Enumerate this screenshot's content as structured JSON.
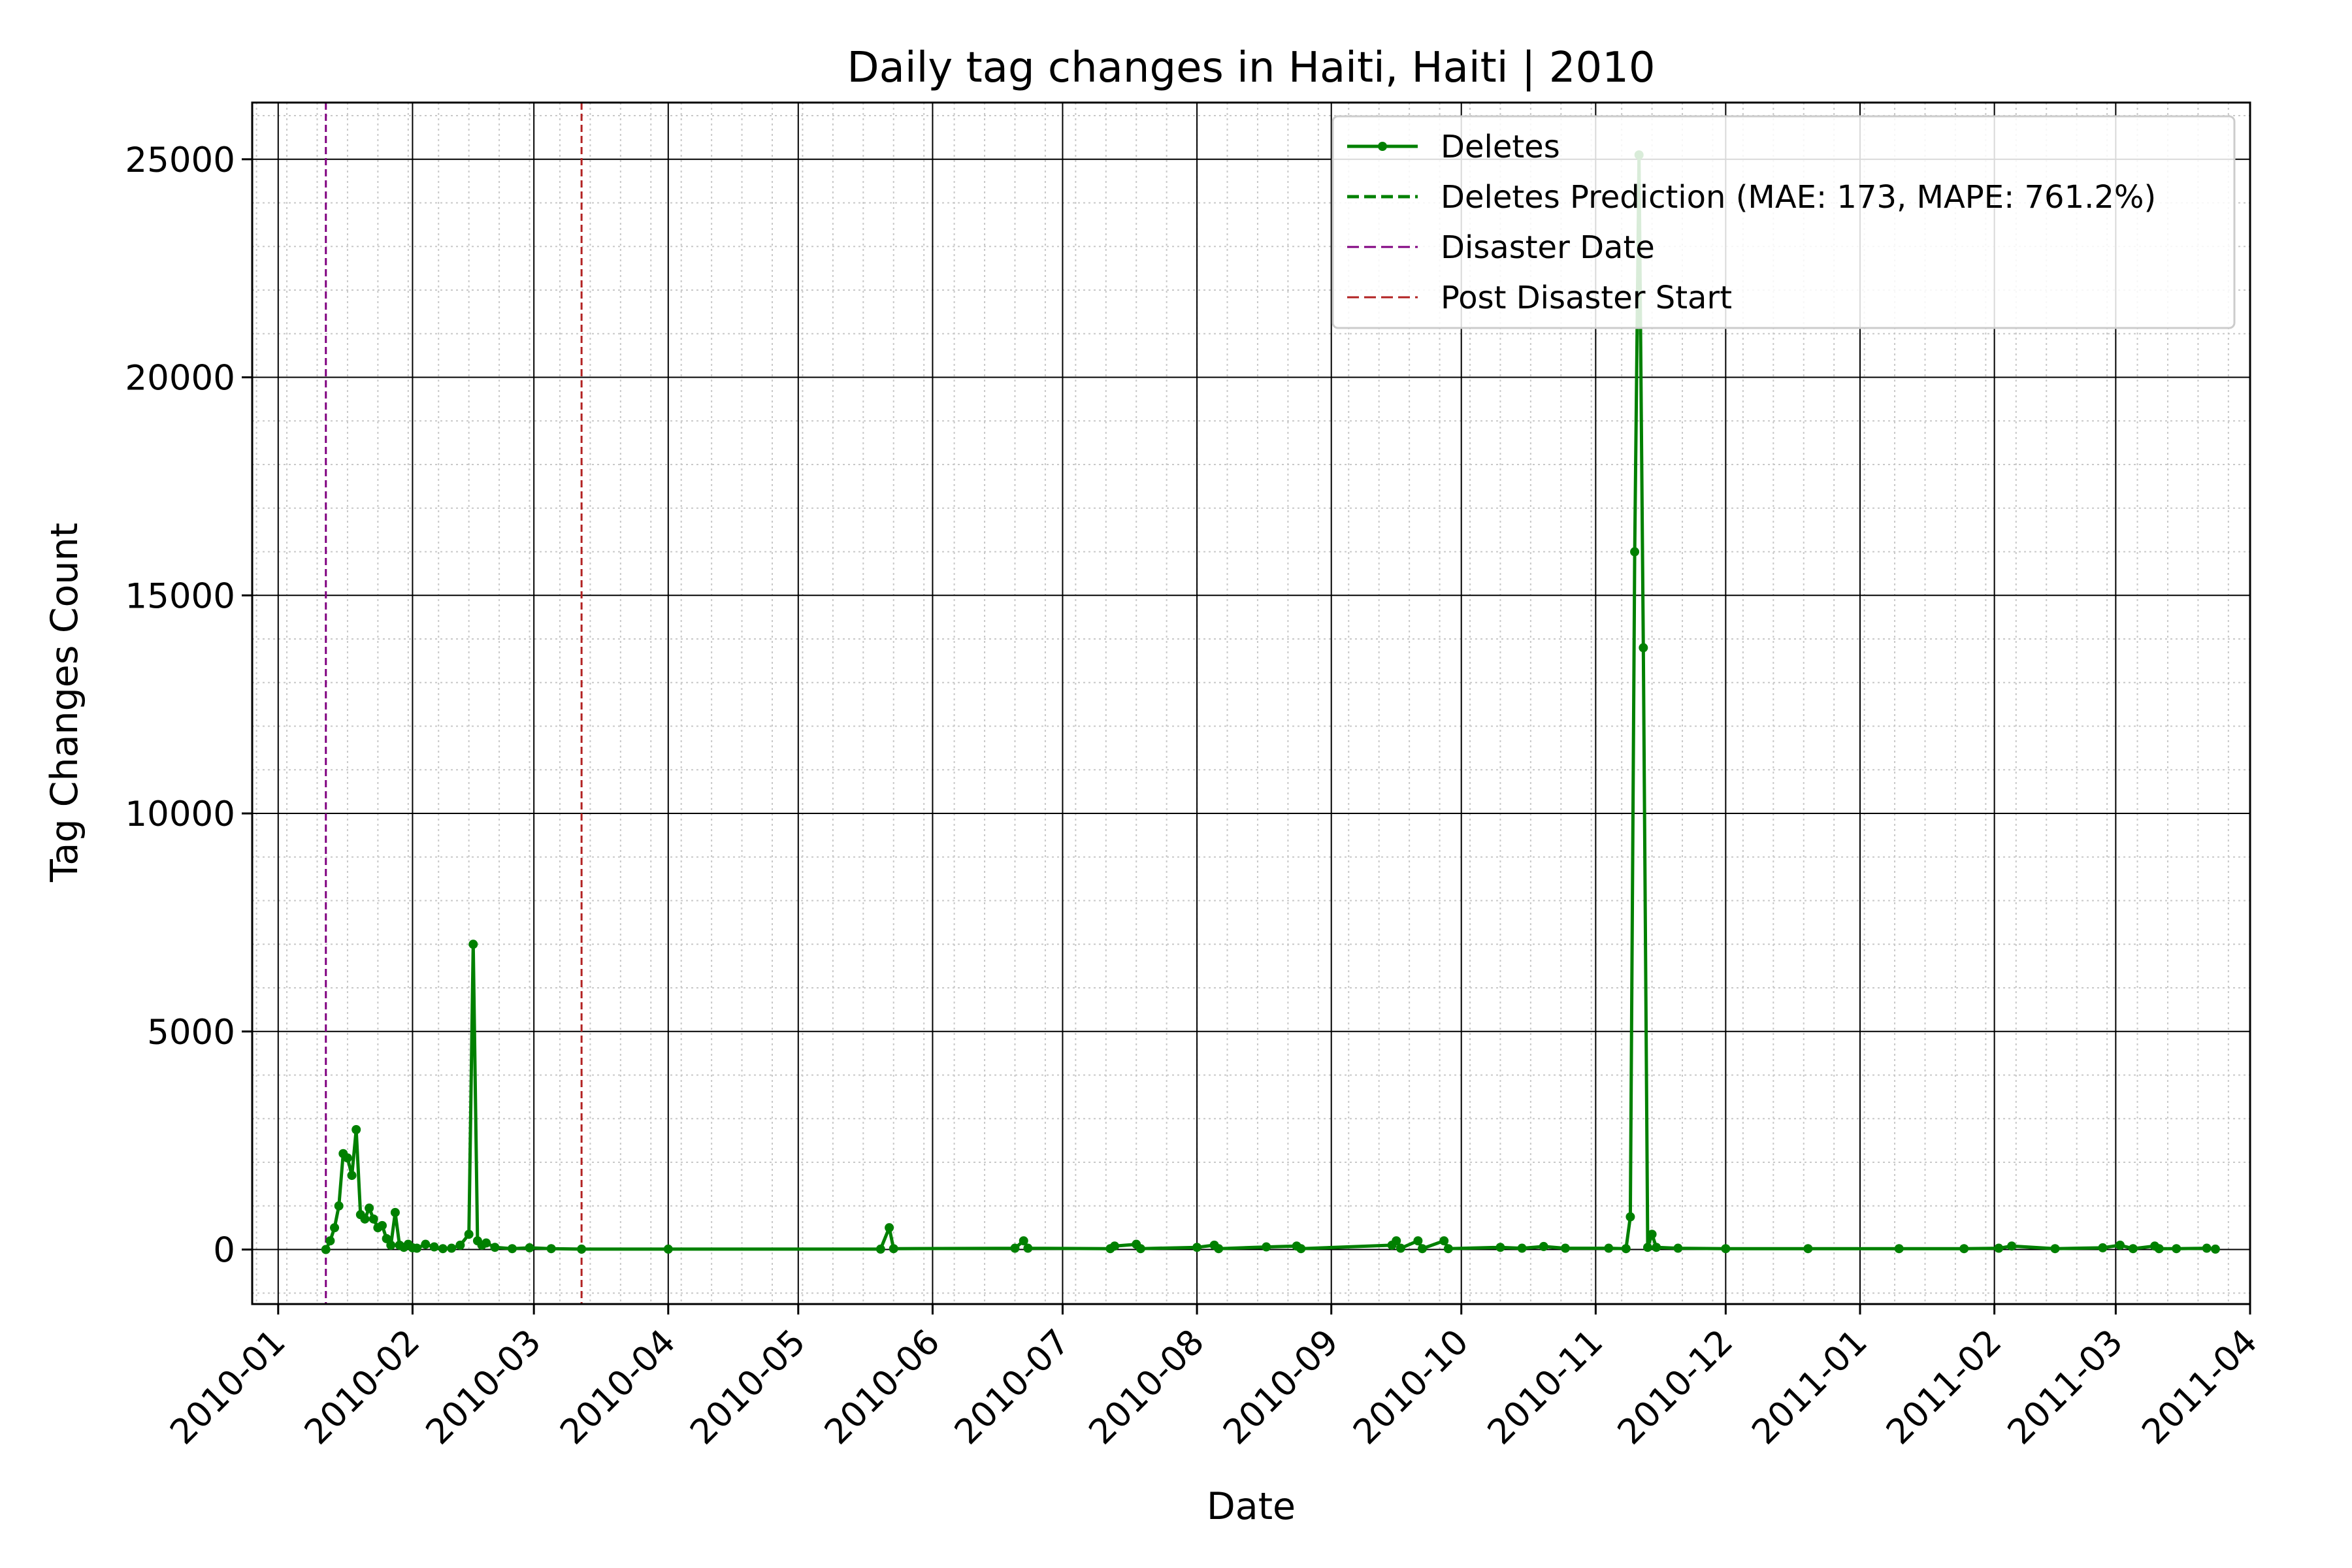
{
  "chart_data": {
    "type": "line",
    "title": "Daily tag changes in Haiti, Haiti | 2010",
    "xlabel": "Date",
    "ylabel": "Tag Changes Count",
    "x_ticks": [
      "2010-01",
      "2010-02",
      "2010-03",
      "2010-04",
      "2010-05",
      "2010-06",
      "2010-07",
      "2010-08",
      "2010-09",
      "2010-10",
      "2010-11",
      "2010-12",
      "2011-01",
      "2011-02",
      "2011-03",
      "2011-04"
    ],
    "y_ticks": [
      0,
      5000,
      10000,
      15000,
      20000,
      25000
    ],
    "xlim": [
      "2009-12-26",
      "2011-04-01"
    ],
    "ylim": [
      -1250,
      26300
    ],
    "grid": true,
    "legend_position": "top-right",
    "legend": [
      {
        "label": "Deletes",
        "style": "line-marker",
        "color": "#008000"
      },
      {
        "label": "Deletes Prediction (MAE: 173, MAPE: 761.2%)",
        "style": "dashed",
        "color": "#008000"
      },
      {
        "label": "Disaster Date",
        "style": "dashed",
        "color": "#800080"
      },
      {
        "label": "Post Disaster Start",
        "style": "dashed",
        "color": "#b22222"
      }
    ],
    "vlines": [
      {
        "name": "Disaster Date",
        "date": "2010-01-12",
        "color": "#800080"
      },
      {
        "name": "Post Disaster Start",
        "date": "2010-03-12",
        "color": "#b22222"
      }
    ],
    "series": [
      {
        "name": "Deletes",
        "color": "#008000",
        "points": [
          [
            "2010-01-12",
            0
          ],
          [
            "2010-01-13",
            200
          ],
          [
            "2010-01-14",
            500
          ],
          [
            "2010-01-15",
            1000
          ],
          [
            "2010-01-16",
            2200
          ],
          [
            "2010-01-17",
            2100
          ],
          [
            "2010-01-18",
            1700
          ],
          [
            "2010-01-19",
            2750
          ],
          [
            "2010-01-20",
            800
          ],
          [
            "2010-01-21",
            700
          ],
          [
            "2010-01-22",
            950
          ],
          [
            "2010-01-23",
            700
          ],
          [
            "2010-01-24",
            500
          ],
          [
            "2010-01-25",
            550
          ],
          [
            "2010-01-26",
            250
          ],
          [
            "2010-01-27",
            100
          ],
          [
            "2010-01-28",
            850
          ],
          [
            "2010-01-29",
            100
          ],
          [
            "2010-01-30",
            50
          ],
          [
            "2010-01-31",
            120
          ],
          [
            "2010-02-01",
            40
          ],
          [
            "2010-02-02",
            30
          ],
          [
            "2010-02-04",
            120
          ],
          [
            "2010-02-06",
            60
          ],
          [
            "2010-02-08",
            20
          ],
          [
            "2010-02-10",
            30
          ],
          [
            "2010-02-12",
            100
          ],
          [
            "2010-02-14",
            350
          ],
          [
            "2010-02-15",
            7000
          ],
          [
            "2010-02-16",
            200
          ],
          [
            "2010-02-17",
            100
          ],
          [
            "2010-02-18",
            150
          ],
          [
            "2010-02-20",
            50
          ],
          [
            "2010-02-24",
            20
          ],
          [
            "2010-02-28",
            40
          ],
          [
            "2010-03-05",
            20
          ],
          [
            "2010-03-12",
            10
          ],
          [
            "2010-04-01",
            10
          ],
          [
            "2010-05-20",
            10
          ],
          [
            "2010-05-22",
            500
          ],
          [
            "2010-05-23",
            20
          ],
          [
            "2010-06-20",
            30
          ],
          [
            "2010-06-22",
            200
          ],
          [
            "2010-06-23",
            30
          ],
          [
            "2010-07-12",
            20
          ],
          [
            "2010-07-13",
            80
          ],
          [
            "2010-07-18",
            120
          ],
          [
            "2010-07-19",
            20
          ],
          [
            "2010-08-01",
            50
          ],
          [
            "2010-08-05",
            100
          ],
          [
            "2010-08-06",
            20
          ],
          [
            "2010-08-17",
            60
          ],
          [
            "2010-08-24",
            80
          ],
          [
            "2010-08-25",
            20
          ],
          [
            "2010-09-15",
            100
          ],
          [
            "2010-09-16",
            200
          ],
          [
            "2010-09-17",
            30
          ],
          [
            "2010-09-21",
            200
          ],
          [
            "2010-09-22",
            20
          ],
          [
            "2010-09-27",
            200
          ],
          [
            "2010-09-28",
            20
          ],
          [
            "2010-10-10",
            50
          ],
          [
            "2010-10-15",
            30
          ],
          [
            "2010-10-20",
            70
          ],
          [
            "2010-10-25",
            30
          ],
          [
            "2010-11-04",
            30
          ],
          [
            "2010-11-08",
            20
          ],
          [
            "2010-11-09",
            750
          ],
          [
            "2010-11-10",
            16000
          ],
          [
            "2010-11-11",
            25100
          ],
          [
            "2010-11-12",
            13800
          ],
          [
            "2010-11-13",
            50
          ],
          [
            "2010-11-14",
            350
          ],
          [
            "2010-11-15",
            50
          ],
          [
            "2010-11-20",
            30
          ],
          [
            "2010-12-01",
            20
          ],
          [
            "2010-12-20",
            20
          ],
          [
            "2011-01-10",
            20
          ],
          [
            "2011-01-25",
            20
          ],
          [
            "2011-02-02",
            30
          ],
          [
            "2011-02-05",
            80
          ],
          [
            "2011-02-15",
            20
          ],
          [
            "2011-02-26",
            40
          ],
          [
            "2011-03-02",
            100
          ],
          [
            "2011-03-05",
            20
          ],
          [
            "2011-03-10",
            80
          ],
          [
            "2011-03-11",
            20
          ],
          [
            "2011-03-15",
            20
          ],
          [
            "2011-03-22",
            30
          ],
          [
            "2011-03-24",
            10
          ]
        ]
      }
    ]
  }
}
